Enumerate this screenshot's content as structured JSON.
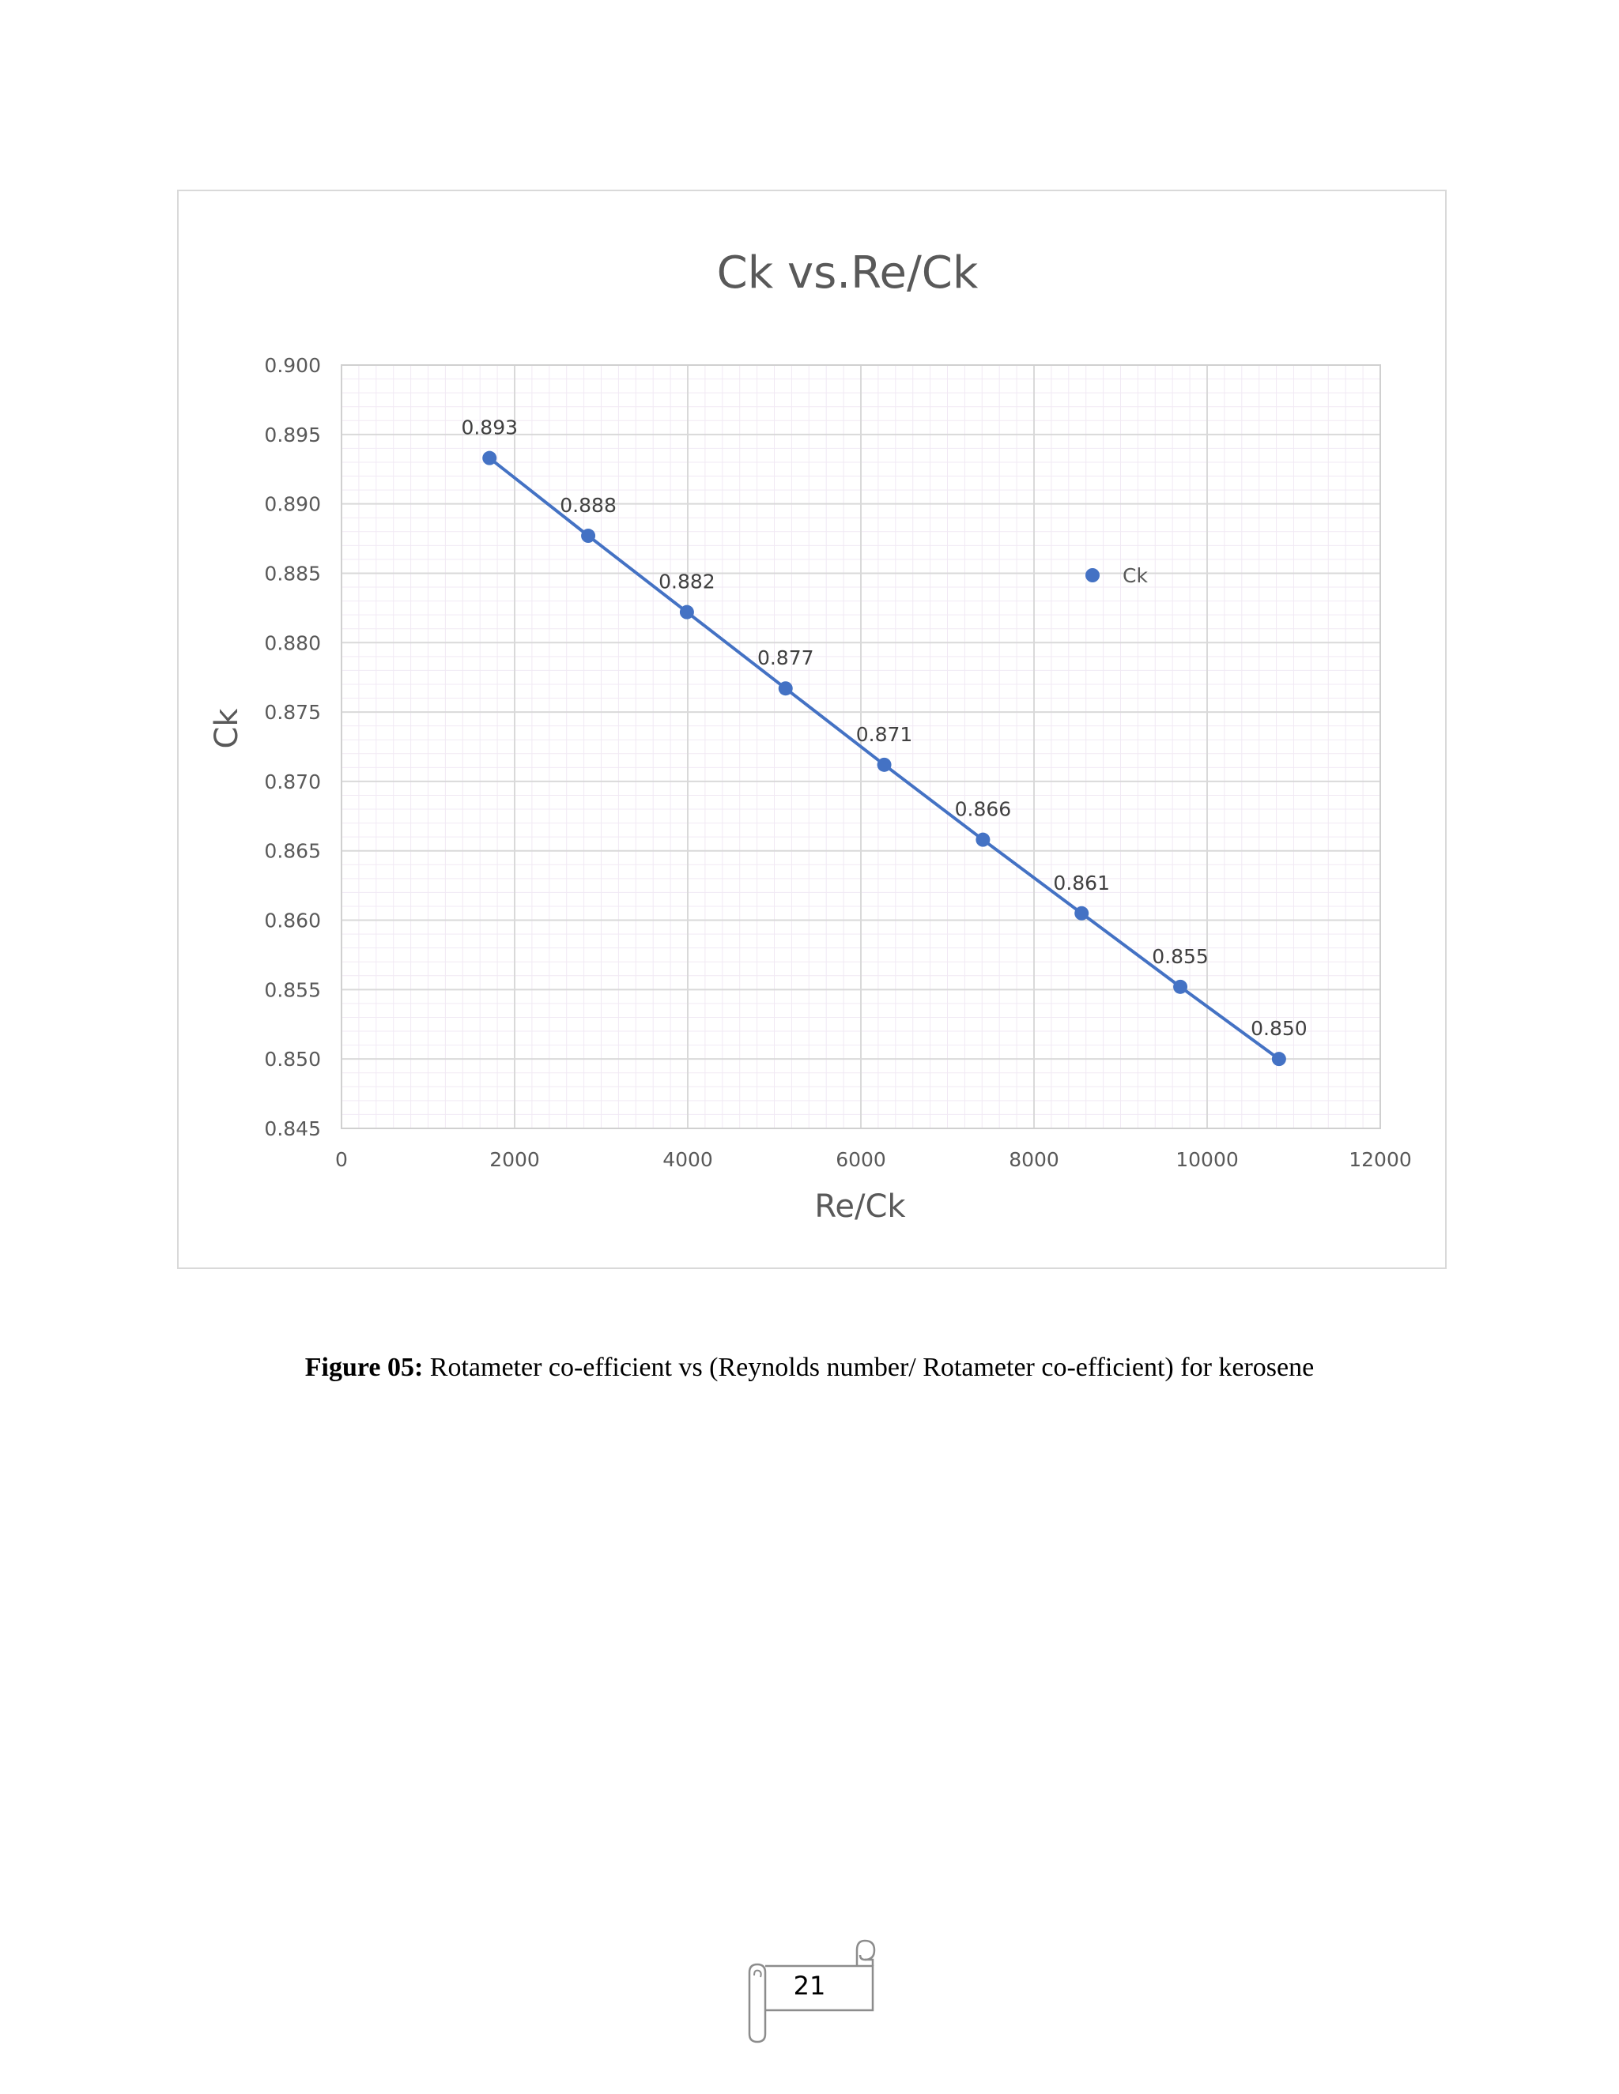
{
  "chart_data": {
    "type": "scatter",
    "title": "Ck vs.Re/Ck",
    "xlabel": "Re/Ck",
    "ylabel": "Ck",
    "xlim": [
      0,
      12000
    ],
    "ylim": [
      0.845,
      0.9
    ],
    "x_ticks": [
      "0",
      "2000",
      "4000",
      "6000",
      "8000",
      "10000",
      "12000"
    ],
    "y_ticks": [
      "0.845",
      "0.850",
      "0.855",
      "0.860",
      "0.865",
      "0.870",
      "0.875",
      "0.880",
      "0.885",
      "0.890",
      "0.895",
      "0.900"
    ],
    "grid": true,
    "legend_position": "right",
    "series": [
      {
        "name": "Ck",
        "color": "#4472c4",
        "x": [
          1710,
          2850,
          3990,
          5130,
          6270,
          7410,
          8550,
          9690,
          10830
        ],
        "y": [
          0.8933,
          0.8877,
          0.8822,
          0.8767,
          0.8712,
          0.8658,
          0.8605,
          0.8552,
          0.85
        ],
        "labels": [
          "0.893",
          "0.888",
          "0.882",
          "0.877",
          "0.871",
          "0.866",
          "0.861",
          "0.855",
          "0.850"
        ]
      }
    ]
  },
  "caption": {
    "label": "Figure 05:",
    "text": " Rotameter co-efficient vs (Reynolds number/ Rotameter co-efficient) for kerosene"
  },
  "page_number": "21"
}
